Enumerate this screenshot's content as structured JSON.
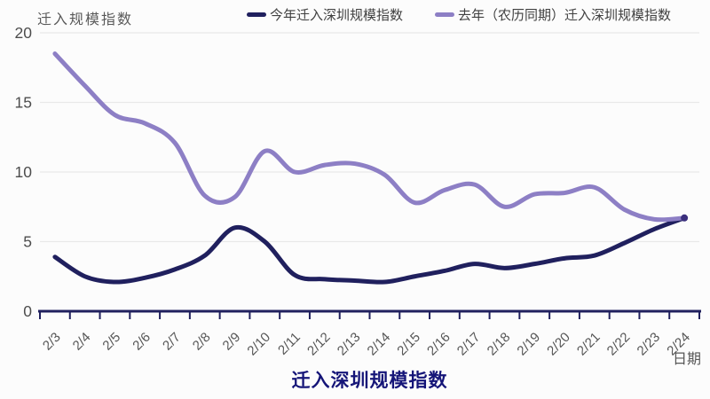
{
  "chart": {
    "y_axis_title": "迁入规模指数",
    "x_axis_title": "日期",
    "bottom_title": "迁入深圳规模指数",
    "colors": {
      "this_year": "#20205e",
      "last_year": "#8d7fc5",
      "grid": "#e9e9e9",
      "axis": "#20205e",
      "tick_label": "#4d4d4d",
      "date_label": "#565656",
      "title": "#151578",
      "end_dot": "#3b2f7d"
    }
  },
  "chart_data": {
    "type": "line",
    "smooth": true,
    "grid": true,
    "legend_position": "top",
    "title": "迁入深圳规模指数",
    "xlabel": "日期",
    "ylabel": "迁入规模指数",
    "ylim": [
      0,
      20
    ],
    "yticks": [
      0,
      5,
      10,
      15,
      20
    ],
    "categories": [
      "2/3",
      "2/4",
      "2/5",
      "2/6",
      "2/7",
      "2/8",
      "2/9",
      "2/10",
      "2/11",
      "2/12",
      "2/13",
      "2/14",
      "2/15",
      "2/16",
      "2/17",
      "2/18",
      "2/19",
      "2/20",
      "2/21",
      "2/22",
      "2/23",
      "2/24"
    ],
    "series": [
      {
        "name": "今年迁入深圳规模指数",
        "color": "#20205e",
        "values": [
          3.9,
          2.5,
          2.1,
          2.4,
          3.0,
          4.0,
          6.0,
          5.0,
          2.6,
          2.3,
          2.2,
          2.1,
          2.5,
          2.9,
          3.4,
          3.1,
          3.4,
          3.8,
          4.0,
          4.9,
          5.9,
          6.7
        ]
      },
      {
        "name": "去年（农历同期）迁入深圳规模指数",
        "color": "#8d7fc5",
        "values": [
          18.5,
          16.2,
          14.1,
          13.5,
          12.1,
          8.3,
          8.2,
          11.5,
          10.0,
          10.5,
          10.6,
          9.8,
          7.8,
          8.7,
          9.1,
          7.5,
          8.4,
          8.5,
          8.9,
          7.3,
          6.6,
          6.7
        ]
      }
    ],
    "end_point_marker": true
  }
}
